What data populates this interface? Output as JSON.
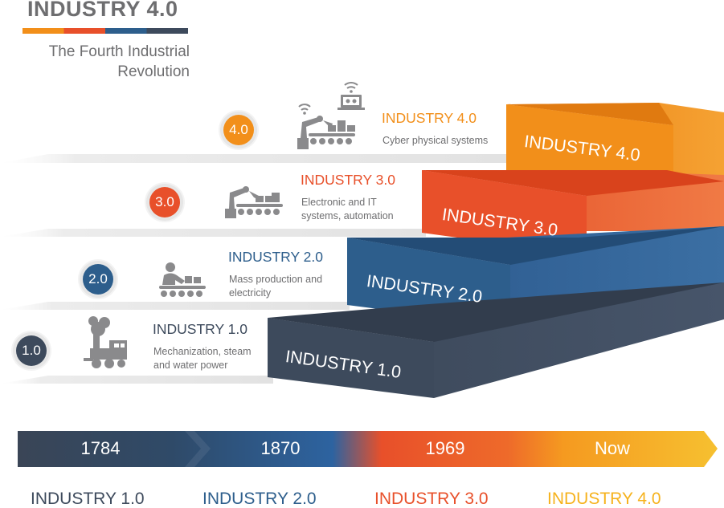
{
  "title": "INDUSTRY 4.0",
  "subtitle_line1": "The Fourth Industrial",
  "subtitle_line2": "Revolution",
  "colors": {
    "gray": "#6e6e70",
    "navy": "#3d4a5c",
    "blue": "#2d5e8c",
    "red": "#e8502a",
    "orange": "#f28f1a"
  },
  "levels": [
    {
      "badge": "1.0",
      "title": "INDUSTRY 1.0",
      "desc_line1": "Mechanization, steam",
      "desc_line2": "and water power",
      "step_label": "INDUSTRY 1.0",
      "icon": "steam-engine-icon"
    },
    {
      "badge": "2.0",
      "title": "INDUSTRY 2.0",
      "desc_line1": "Mass production and",
      "desc_line2": "electricity",
      "step_label": "INDUSTRY 2.0",
      "icon": "assembly-line-worker-icon"
    },
    {
      "badge": "3.0",
      "title": "INDUSTRY 3.0",
      "desc_line1": "Electronic and IT",
      "desc_line2": "systems, automation",
      "step_label": "INDUSTRY 3.0",
      "icon": "robot-arm-conveyor-icon"
    },
    {
      "badge": "4.0",
      "title": "INDUSTRY 4.0",
      "desc_line1": "Cyber physical systems",
      "desc_line2": "",
      "step_label": "INDUSTRY 4.0",
      "icon": "connected-robot-icon"
    }
  ],
  "timeline": [
    {
      "year": "1784",
      "label": "INDUSTRY 1.0"
    },
    {
      "year": "1870",
      "label": "INDUSTRY 2.0"
    },
    {
      "year": "1969",
      "label": "INDUSTRY 3.0"
    },
    {
      "year": "Now",
      "label": "INDUSTRY 4.0"
    }
  ]
}
